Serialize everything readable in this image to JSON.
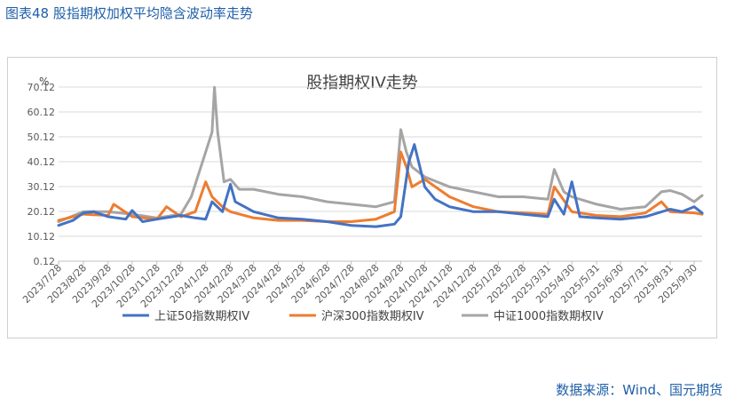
{
  "figure_title": "图表48 股指期权加权平均隐含波动率走势",
  "source": "数据来源：Wind、国元期货",
  "chart_data": {
    "type": "line",
    "title": "股指期权IV走势",
    "ylabel": "%",
    "ylim": [
      0.12,
      70.12
    ],
    "yticks": [
      "0.12",
      "10.12",
      "20.12",
      "30.12",
      "40.12",
      "50.12",
      "60.12",
      "70.12"
    ],
    "grid": true,
    "legend": "bottom",
    "x_ticks": [
      "2023/7/28",
      "2023/8/28",
      "2023/9/28",
      "2023/10/28",
      "2023/11/28",
      "2023/12/28",
      "2024/1/28",
      "2024/2/28",
      "2024/3/28",
      "2024/4/28",
      "2024/5/28",
      "2024/6/28",
      "2024/7/28",
      "2024/8/28",
      "2024/9/28",
      "2024/10/28",
      "2024/11/28",
      "2024/12/28",
      "2025/1/28",
      "2025/2/28",
      "2025/3/31",
      "2025/4/30",
      "2025/5/31",
      "2025/6/30",
      "2025/7/31",
      "2025/8/31",
      "2025/9/30"
    ],
    "series": [
      {
        "name": "上证50指数期权IV",
        "color": "#4472c4",
        "x": [
          "2023/7/28",
          "2023/8/15",
          "2023/8/28",
          "2023/9/10",
          "2023/9/28",
          "2023/10/20",
          "2023/10/28",
          "2023/11/10",
          "2023/11/28",
          "2023/12/28",
          "2024/1/15",
          "2024/1/28",
          "2024/2/5",
          "2024/2/18",
          "2024/2/28",
          "2024/3/5",
          "2024/3/28",
          "2024/4/28",
          "2024/5/28",
          "2024/6/28",
          "2024/7/28",
          "2024/8/28",
          "2024/9/20",
          "2024/9/28",
          "2024/10/8",
          "2024/10/15",
          "2024/10/28",
          "2024/11/10",
          "2024/11/28",
          "2024/12/28",
          "2025/1/28",
          "2025/2/28",
          "2025/3/31",
          "2025/4/8",
          "2025/4/20",
          "2025/4/30",
          "2025/5/10",
          "2025/5/31",
          "2025/6/30",
          "2025/7/31",
          "2025/8/31",
          "2025/9/15",
          "2025/9/30",
          "2025/10/10"
        ],
        "values": [
          14.5,
          16.5,
          19.5,
          20.0,
          18.0,
          17.0,
          20.5,
          16.0,
          17.0,
          18.5,
          17.5,
          17.0,
          24.0,
          20.0,
          31.0,
          24.0,
          20.0,
          17.5,
          17.0,
          16.0,
          14.5,
          14.0,
          15.0,
          18.0,
          40.0,
          47.0,
          30.0,
          25.0,
          22.0,
          20.0,
          20.0,
          19.0,
          18.0,
          25.0,
          19.0,
          32.0,
          18.0,
          17.5,
          17.0,
          18.0,
          21.0,
          20.0,
          22.0,
          19.5
        ]
      },
      {
        "name": "沪深300指数期权IV",
        "color": "#ed7d31",
        "x": [
          "2023/7/28",
          "2023/8/28",
          "2023/9/28",
          "2023/10/5",
          "2023/10/28",
          "2023/11/28",
          "2023/12/10",
          "2023/12/28",
          "2024/1/15",
          "2024/1/28",
          "2024/2/5",
          "2024/2/18",
          "2024/2/28",
          "2024/3/28",
          "2024/4/28",
          "2024/5/28",
          "2024/6/28",
          "2024/7/28",
          "2024/8/28",
          "2024/9/20",
          "2024/9/28",
          "2024/10/5",
          "2024/10/12",
          "2024/10/28",
          "2024/11/28",
          "2024/12/28",
          "2025/1/28",
          "2025/2/28",
          "2025/3/31",
          "2025/4/8",
          "2025/4/30",
          "2025/5/31",
          "2025/6/30",
          "2025/7/31",
          "2025/8/20",
          "2025/8/31",
          "2025/9/30",
          "2025/10/10"
        ],
        "values": [
          16.5,
          19.0,
          18.5,
          23.0,
          18.0,
          17.0,
          22.0,
          18.0,
          20.0,
          32.0,
          26.0,
          22.0,
          20.0,
          17.5,
          16.5,
          16.5,
          16.0,
          16.0,
          17.0,
          20.0,
          44.0,
          38.0,
          30.0,
          33.0,
          26.0,
          22.0,
          20.0,
          19.5,
          19.0,
          30.0,
          20.0,
          18.5,
          18.0,
          19.5,
          24.0,
          20.0,
          19.5,
          19.0
        ]
      },
      {
        "name": "中证1000指数期权IV",
        "color": "#a5a5a5",
        "x": [
          "2023/7/28",
          "2023/8/28",
          "2023/9/28",
          "2023/10/28",
          "2023/11/28",
          "2023/12/28",
          "2024/1/10",
          "2024/1/28",
          "2024/2/5",
          "2024/2/8",
          "2024/2/12",
          "2024/2/20",
          "2024/2/28",
          "2024/3/10",
          "2024/3/28",
          "2024/4/28",
          "2024/5/28",
          "2024/6/28",
          "2024/7/28",
          "2024/8/28",
          "2024/9/20",
          "2024/9/28",
          "2024/10/5",
          "2024/10/12",
          "2024/10/28",
          "2024/11/28",
          "2024/12/28",
          "2025/1/28",
          "2025/2/28",
          "2025/3/31",
          "2025/4/8",
          "2025/4/20",
          "2025/4/30",
          "2025/5/31",
          "2025/6/30",
          "2025/7/31",
          "2025/8/20",
          "2025/8/31",
          "2025/9/15",
          "2025/9/30",
          "2025/10/10"
        ],
        "values": [
          16.0,
          20.0,
          20.0,
          19.0,
          17.5,
          19.0,
          26.0,
          44.0,
          52.0,
          70.0,
          52.0,
          32.0,
          33.0,
          29.0,
          29.0,
          27.0,
          26.0,
          24.0,
          23.0,
          22.0,
          24.0,
          53.0,
          44.0,
          38.0,
          34.0,
          30.0,
          28.0,
          26.0,
          26.0,
          25.0,
          37.0,
          28.0,
          26.0,
          23.0,
          21.0,
          22.0,
          28.0,
          28.5,
          27.0,
          24.0,
          26.5
        ]
      }
    ]
  }
}
